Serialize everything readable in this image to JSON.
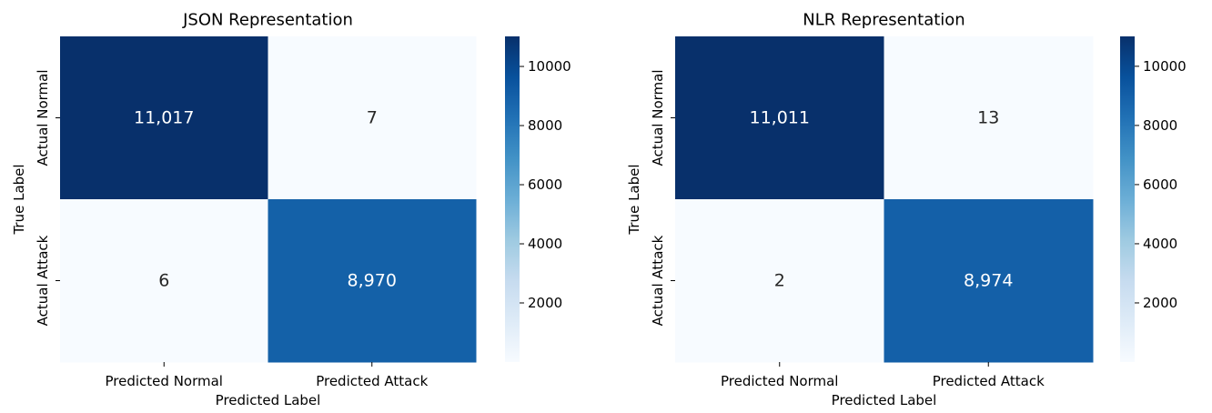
{
  "chart_data": [
    {
      "type": "heatmap",
      "title": "JSON Representation",
      "xlabel": "Predicted Label",
      "ylabel": "True Label",
      "x_categories": [
        "Predicted Normal",
        "Predicted Attack"
      ],
      "y_categories": [
        "Actual Normal",
        "Actual Attack"
      ],
      "values": [
        [
          11017,
          7
        ],
        [
          6,
          8970
        ]
      ],
      "cell_labels": [
        [
          "11,017",
          "7"
        ],
        [
          "6",
          "8,970"
        ]
      ],
      "colormap": "Blues",
      "colorbar": {
        "range": [
          0,
          11017
        ],
        "ticks": [
          2000,
          4000,
          6000,
          8000,
          10000
        ],
        "tick_labels": [
          "2000",
          "4000",
          "6000",
          "8000",
          "10000"
        ]
      },
      "grid": false,
      "legend": "colorbar-right"
    },
    {
      "type": "heatmap",
      "title": "NLR Representation",
      "xlabel": "Predicted Label",
      "ylabel": "True Label",
      "x_categories": [
        "Predicted Normal",
        "Predicted Attack"
      ],
      "y_categories": [
        "Actual Normal",
        "Actual Attack"
      ],
      "values": [
        [
          11011,
          13
        ],
        [
          2,
          8974
        ]
      ],
      "cell_labels": [
        [
          "11,011",
          "13"
        ],
        [
          "2",
          "8,974"
        ]
      ],
      "colormap": "Blues",
      "colorbar": {
        "range": [
          0,
          11011
        ],
        "ticks": [
          2000,
          4000,
          6000,
          8000,
          10000
        ],
        "tick_labels": [
          "2000",
          "4000",
          "6000",
          "8000",
          "10000"
        ]
      },
      "grid": false,
      "legend": "colorbar-right"
    }
  ]
}
